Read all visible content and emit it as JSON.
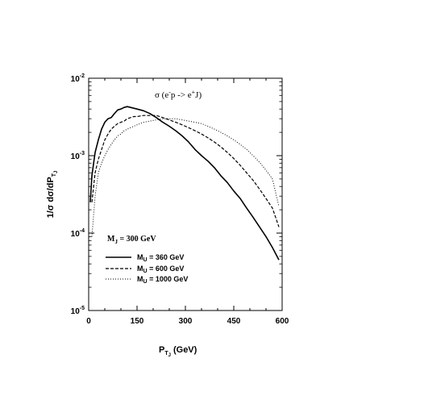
{
  "chart_data": {
    "type": "line",
    "title": "σ (e⁻p -> e⁺J)",
    "title_parts": {
      "pre": "σ (e",
      "sup1": "-",
      "mid": "p -> e",
      "sup2": "+",
      "post": "J)"
    },
    "xlabel": "P",
    "xlabel_sub": "T",
    "xlabel_subsub": "J",
    "xlabel_unit": "(GeV)",
    "ylabel": "1/σ dσ/dP",
    "ylabel_sub": "T",
    "ylabel_subsub": "J",
    "xlim": [
      0,
      600
    ],
    "ylim": [
      1e-05,
      0.01
    ],
    "y_scale": "log",
    "x_ticks": [
      "0",
      "150",
      "300",
      "450",
      "600"
    ],
    "x_tick_values": [
      0,
      150,
      300,
      450,
      600
    ],
    "y_ticks": [
      {
        "value": 1e-05,
        "base": "10",
        "exp": "-5"
      },
      {
        "value": 0.0001,
        "base": "10",
        "exp": "-4"
      },
      {
        "value": 0.001,
        "base": "10",
        "exp": "-3"
      },
      {
        "value": 0.01,
        "base": "10",
        "exp": "-2"
      }
    ],
    "annotation": {
      "text_main": "M",
      "text_sub": "J",
      "text_rest": " = 300 GeV"
    },
    "legend_placement": "lower-left",
    "series": [
      {
        "name_main": "M",
        "name_sub": "U",
        "name_rest": " = 360 GeV",
        "style": "solid",
        "x": [
          5,
          10,
          20,
          30,
          40,
          50,
          60,
          70,
          80,
          90,
          100,
          110,
          120,
          130,
          140,
          150,
          170,
          190,
          210,
          230,
          250,
          270,
          290,
          310,
          330,
          350,
          370,
          390,
          410,
          430,
          450,
          470,
          490,
          510,
          530,
          550,
          570,
          590
        ],
        "y": [
          0.00025,
          0.00055,
          0.0011,
          0.0016,
          0.0022,
          0.0027,
          0.003,
          0.0031,
          0.0035,
          0.0039,
          0.004,
          0.0042,
          0.0043,
          0.0042,
          0.0041,
          0.004,
          0.0038,
          0.0035,
          0.0031,
          0.0027,
          0.0024,
          0.0021,
          0.0018,
          0.0015,
          0.0012,
          0.001,
          0.00085,
          0.0007,
          0.00055,
          0.00045,
          0.00035,
          0.00028,
          0.00021,
          0.00016,
          0.00012,
          9e-05,
          6.5e-05,
          4.5e-05
        ]
      },
      {
        "name_main": "M",
        "name_sub": "U",
        "name_rest": " = 600 GeV",
        "style": "dashed",
        "x": [
          10,
          20,
          30,
          40,
          50,
          60,
          70,
          80,
          90,
          100,
          110,
          120,
          130,
          140,
          150,
          170,
          190,
          210,
          230,
          250,
          270,
          290,
          310,
          330,
          350,
          370,
          390,
          410,
          430,
          450,
          470,
          490,
          510,
          530,
          550,
          570,
          590
        ],
        "y": [
          0.00025,
          0.0006,
          0.0009,
          0.0012,
          0.0016,
          0.0019,
          0.0022,
          0.0024,
          0.0026,
          0.0027,
          0.0028,
          0.003,
          0.0031,
          0.0032,
          0.0032,
          0.0033,
          0.0033,
          0.0033,
          0.0031,
          0.0029,
          0.0027,
          0.0025,
          0.0023,
          0.0021,
          0.0019,
          0.0017,
          0.0015,
          0.0013,
          0.0011,
          0.00092,
          0.00075,
          0.0006,
          0.00048,
          0.00037,
          0.00028,
          0.00021,
          0.00012
        ]
      },
      {
        "name_main": "M",
        "name_sub": "U",
        "name_rest": " = 1000 GeV",
        "style": "dotted",
        "x": [
          10,
          20,
          30,
          40,
          50,
          60,
          70,
          80,
          90,
          100,
          110,
          120,
          130,
          140,
          150,
          170,
          190,
          210,
          230,
          250,
          270,
          290,
          310,
          330,
          350,
          370,
          390,
          410,
          430,
          450,
          470,
          490,
          510,
          530,
          550,
          570,
          590
        ],
        "y": [
          9e-05,
          0.0003,
          0.0006,
          0.0008,
          0.001,
          0.0012,
          0.0014,
          0.0016,
          0.0018,
          0.0019,
          0.0021,
          0.0022,
          0.0023,
          0.0024,
          0.0025,
          0.0027,
          0.0028,
          0.0029,
          0.003,
          0.003,
          0.003,
          0.0029,
          0.0028,
          0.0027,
          0.0026,
          0.0024,
          0.0022,
          0.002,
          0.0018,
          0.0016,
          0.0014,
          0.0012,
          0.001,
          0.00082,
          0.00065,
          0.0005,
          0.00022
        ]
      }
    ]
  }
}
